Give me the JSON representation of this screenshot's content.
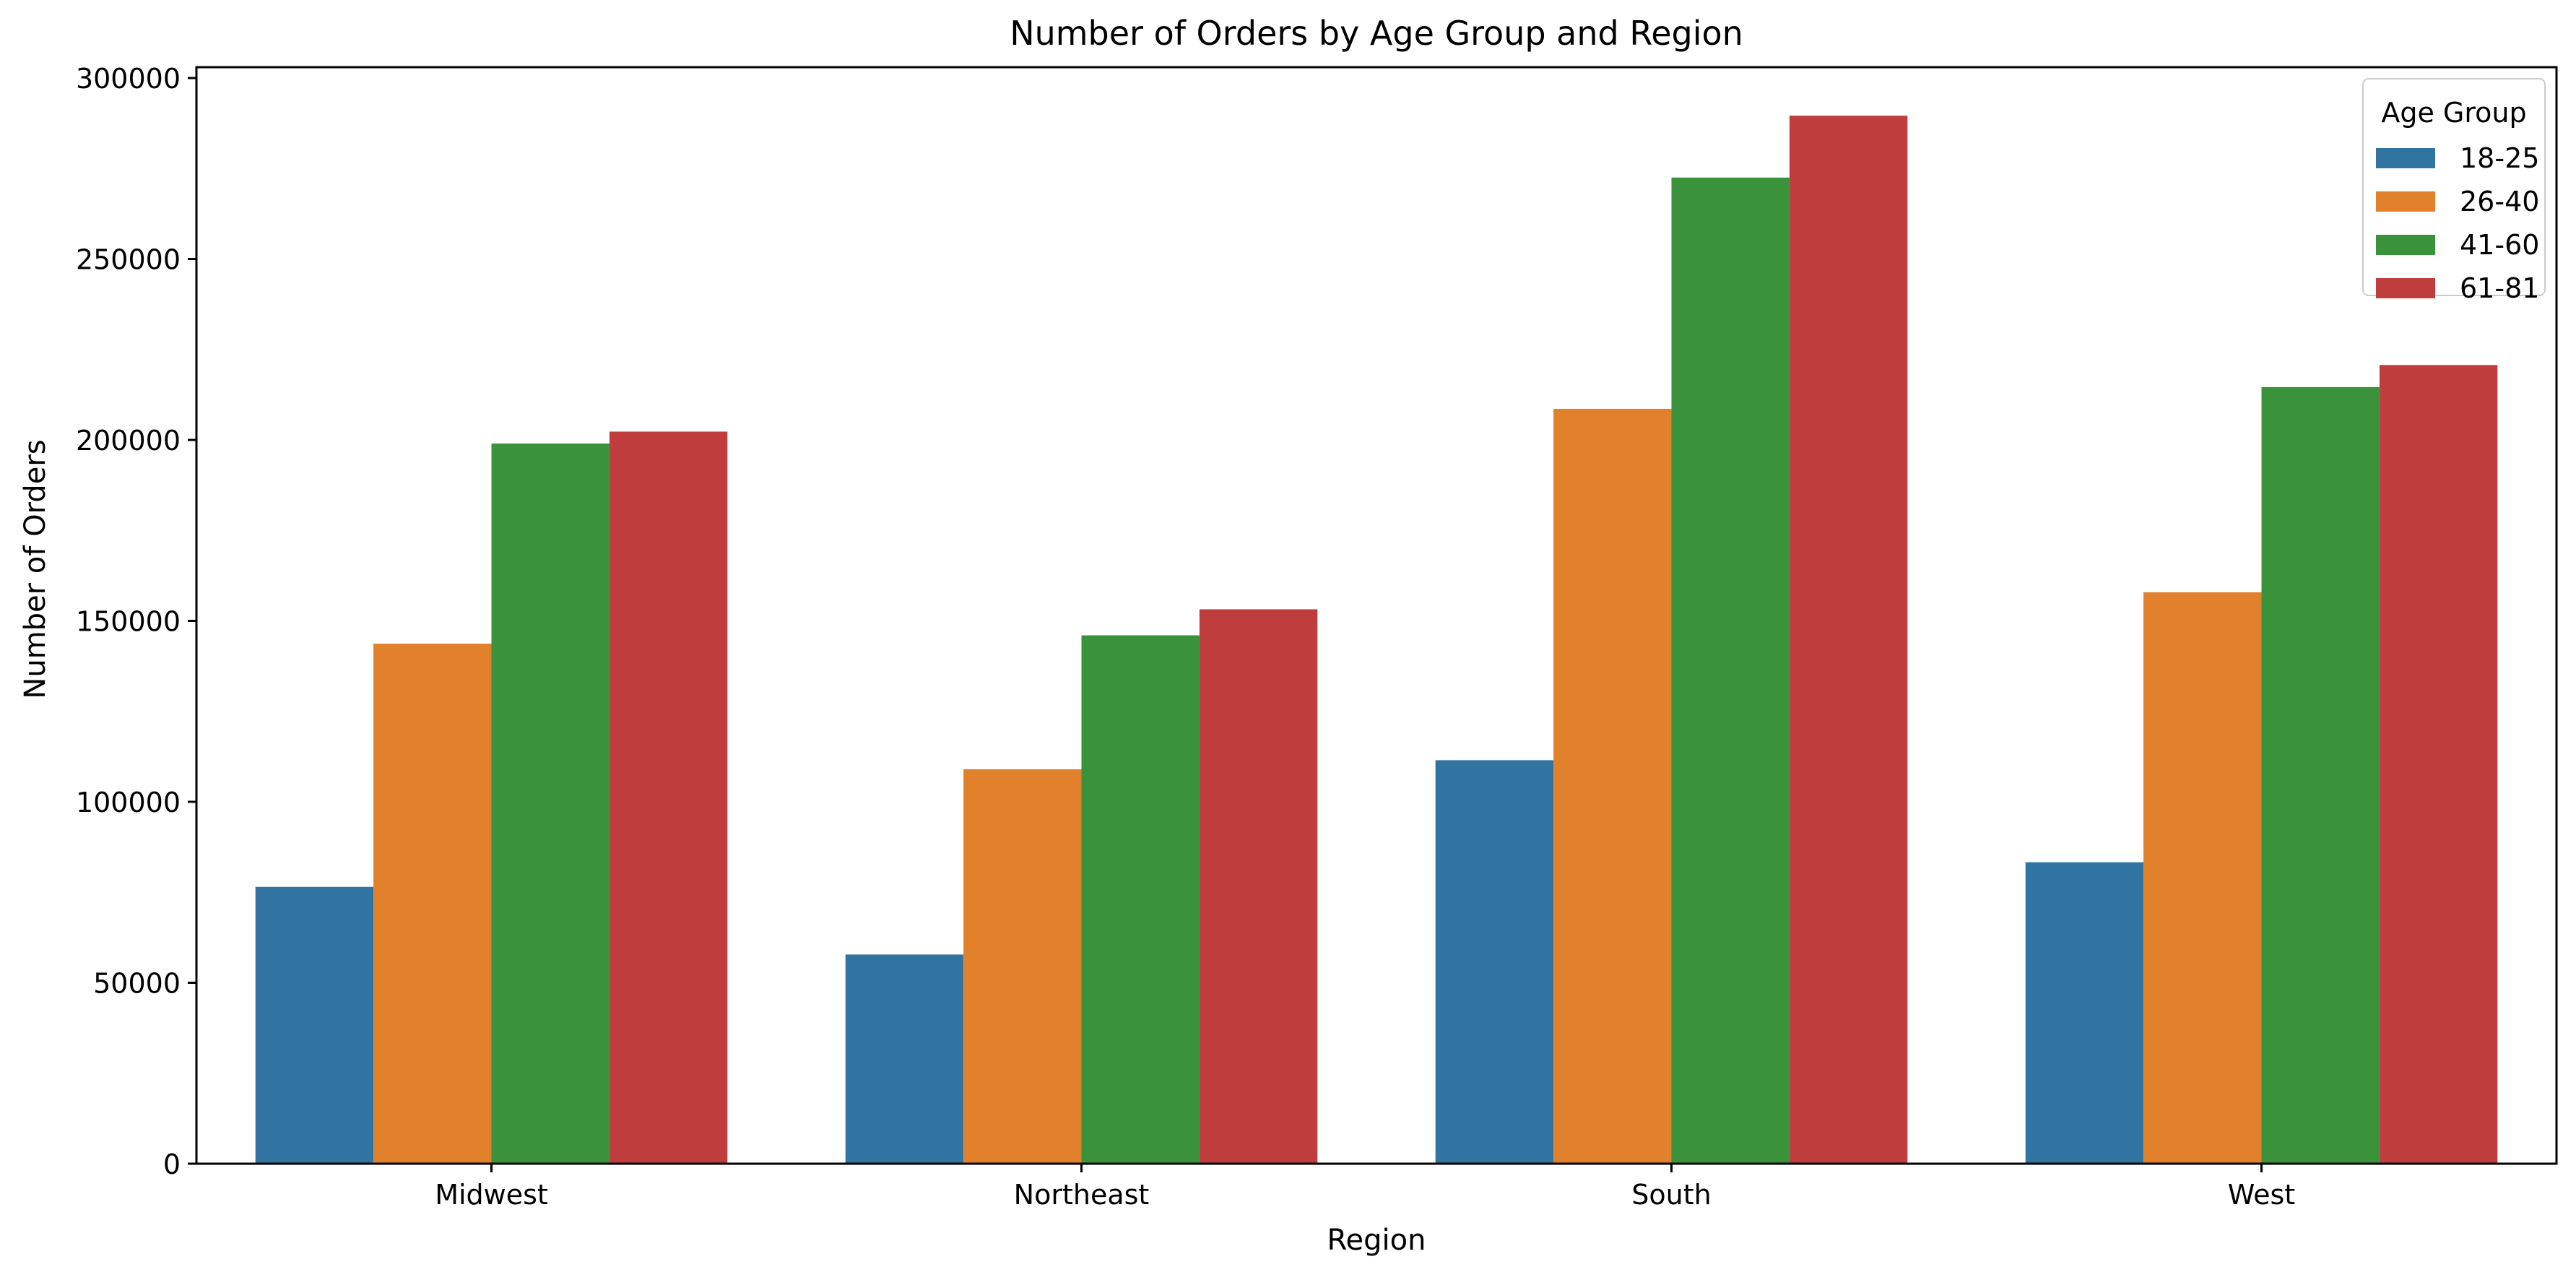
{
  "chart_data": {
    "type": "bar",
    "title": "Number of Orders by Age Group and Region",
    "xlabel": "Region",
    "ylabel": "Number of Orders",
    "categories": [
      "Midwest",
      "Northeast",
      "South",
      "West"
    ],
    "ylim": [
      0,
      303000
    ],
    "yticks": [
      0,
      50000,
      100000,
      150000,
      200000,
      250000,
      300000
    ],
    "grid": false,
    "legend": {
      "title": "Age Group",
      "position": "top-right"
    },
    "series": [
      {
        "name": "18-25",
        "color": "#3274a1",
        "values": [
          76500,
          57800,
          111500,
          83300
        ]
      },
      {
        "name": "26-40",
        "color": "#e1812c",
        "values": [
          143700,
          109000,
          208600,
          157900
        ]
      },
      {
        "name": "41-60",
        "color": "#3a923a",
        "values": [
          199000,
          146000,
          272500,
          214600
        ]
      },
      {
        "name": "61-81",
        "color": "#c03d3e",
        "values": [
          202300,
          153200,
          289600,
          220700
        ]
      }
    ]
  }
}
